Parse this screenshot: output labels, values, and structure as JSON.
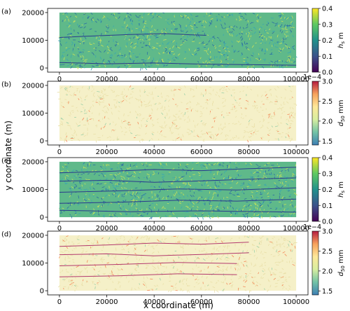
{
  "figure": {
    "xlabel": "x coordinate (m)",
    "ylabel": "y coordinate (m)"
  },
  "chart_data": [
    {
      "panel": "(a)",
      "type": "heatmap",
      "variable": "hs",
      "colorbar_label": "h_s m",
      "colormap": "viridis",
      "colorbar_range": [
        0.0,
        0.4
      ],
      "colorbar_ticks": [
        "0.0",
        "0.1",
        "0.2",
        "0.3",
        "0.4"
      ],
      "colorbar_exponent": "",
      "xlim": [
        -5000,
        105000
      ],
      "ylim": [
        -1500,
        21500
      ],
      "xticks": [
        0,
        20000,
        40000,
        60000,
        80000,
        100000
      ],
      "yticks": [
        0,
        10000,
        20000
      ],
      "channels": [
        [
          [
            0,
            11000
          ],
          [
            15000,
            11600
          ],
          [
            30000,
            12100
          ],
          [
            45000,
            12400
          ],
          [
            55000,
            12000
          ],
          [
            62000,
            11800
          ]
        ],
        [
          [
            0,
            2000
          ],
          [
            20000,
            1500
          ],
          [
            40000,
            1800
          ],
          [
            60000,
            1400
          ],
          [
            100000,
            1000
          ]
        ]
      ]
    },
    {
      "panel": "(b)",
      "type": "heatmap",
      "variable": "d50",
      "colorbar_label": "d_50 mm",
      "colormap": "spectral_r",
      "colorbar_range": [
        1.4,
        3.0
      ],
      "colorbar_ticks": [
        "1.5",
        "2.0",
        "2.5",
        "3.0"
      ],
      "colorbar_exponent": "1e−4",
      "xlim": [
        -5000,
        105000
      ],
      "ylim": [
        -1500,
        21500
      ],
      "xticks": [
        0,
        20000,
        40000,
        60000,
        80000,
        100000
      ],
      "yticks": [
        0,
        10000,
        20000
      ],
      "channels": []
    },
    {
      "panel": "(c)",
      "type": "heatmap",
      "variable": "hs",
      "colorbar_label": "h_s m",
      "colormap": "viridis",
      "colorbar_range": [
        0.0,
        0.4
      ],
      "colorbar_ticks": [
        "0.0",
        "0.1",
        "0.2",
        "0.3",
        "0.4"
      ],
      "colorbar_exponent": "",
      "xlim": [
        -5000,
        105000
      ],
      "ylim": [
        -1500,
        21500
      ],
      "xticks": [
        0,
        20000,
        40000,
        60000,
        80000,
        100000
      ],
      "yticks": [
        0,
        10000,
        20000
      ],
      "channels": [
        [
          [
            0,
            16000
          ],
          [
            20000,
            16500
          ],
          [
            40000,
            17200
          ],
          [
            60000,
            16800
          ],
          [
            80000,
            17500
          ],
          [
            100000,
            18000
          ]
        ],
        [
          [
            0,
            13000
          ],
          [
            20000,
            13300
          ],
          [
            40000,
            12600
          ],
          [
            60000,
            13100
          ],
          [
            80000,
            13700
          ],
          [
            100000,
            14200
          ]
        ],
        [
          [
            0,
            9000
          ],
          [
            25000,
            9500
          ],
          [
            50000,
            10200
          ],
          [
            75000,
            9800
          ],
          [
            100000,
            10600
          ]
        ],
        [
          [
            0,
            5000
          ],
          [
            25000,
            5400
          ],
          [
            50000,
            6100
          ],
          [
            75000,
            5800
          ],
          [
            100000,
            6500
          ]
        ],
        [
          [
            0,
            2500
          ],
          [
            30000,
            2000
          ],
          [
            60000,
            2300
          ],
          [
            100000,
            1800
          ]
        ]
      ]
    },
    {
      "panel": "(d)",
      "type": "heatmap",
      "variable": "d50",
      "colorbar_label": "d_50 mm",
      "colormap": "spectral_r",
      "colorbar_range": [
        1.4,
        3.0
      ],
      "colorbar_ticks": [
        "1.5",
        "2.0",
        "2.5",
        "3.0"
      ],
      "colorbar_exponent": "1e−4",
      "xlim": [
        -5000,
        105000
      ],
      "ylim": [
        -1500,
        21500
      ],
      "xticks": [
        0,
        20000,
        40000,
        60000,
        80000,
        100000
      ],
      "yticks": [
        0,
        10000,
        20000
      ],
      "channels": [
        [
          [
            0,
            16000
          ],
          [
            20000,
            16500
          ],
          [
            40000,
            17200
          ],
          [
            60000,
            16800
          ],
          [
            80000,
            17500
          ]
        ],
        [
          [
            0,
            13000
          ],
          [
            20000,
            13300
          ],
          [
            40000,
            12600
          ],
          [
            60000,
            13100
          ],
          [
            80000,
            13700
          ]
        ],
        [
          [
            0,
            9000
          ],
          [
            25000,
            9500
          ],
          [
            50000,
            10200
          ],
          [
            75000,
            9800
          ]
        ],
        [
          [
            0,
            5000
          ],
          [
            25000,
            5400
          ],
          [
            50000,
            6100
          ],
          [
            75000,
            5800
          ]
        ]
      ]
    }
  ]
}
